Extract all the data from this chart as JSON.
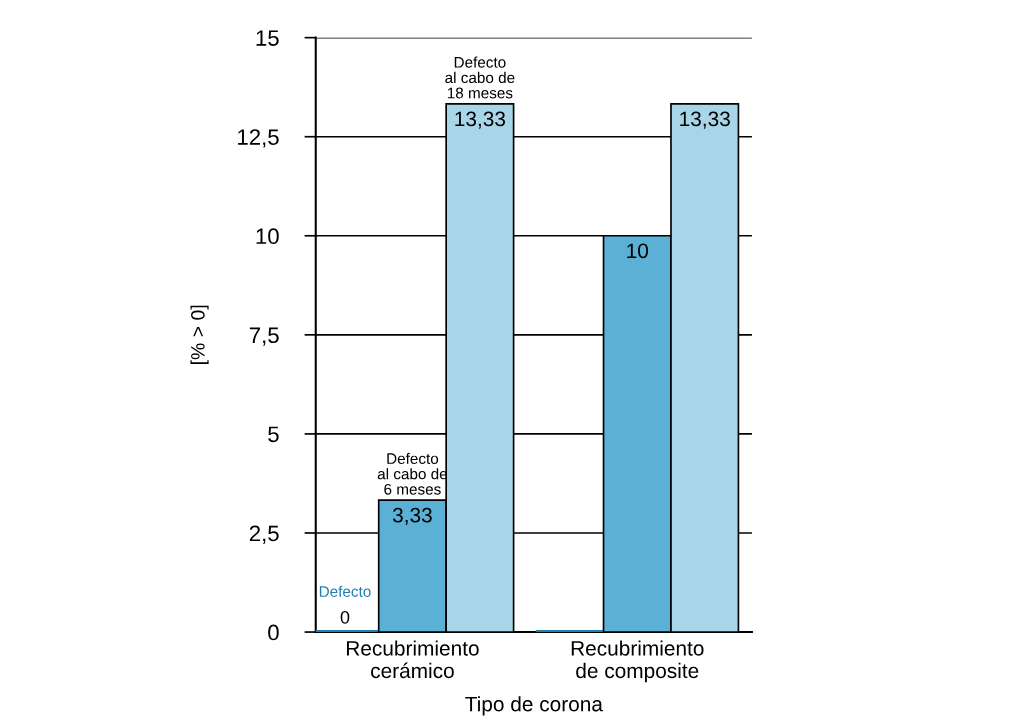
{
  "chart_data": {
    "type": "bar",
    "xlabel": "Tipo de corona",
    "ylabel": "[% > 0]",
    "categories": [
      "Recubrimiento\ncerámico",
      "Recubrimiento\nde composite"
    ],
    "series": [
      {
        "name": "Defecto",
        "color": "#1f7fb3",
        "values": [
          0,
          0
        ],
        "value_labels": [
          "0",
          null
        ]
      },
      {
        "name": "Defecto\nal cabo de\n6 meses",
        "color": "#5ab1d5",
        "values": [
          3.33,
          10
        ],
        "value_labels": [
          "3,33",
          "10"
        ]
      },
      {
        "name": "Defecto\nal cabo de\n18 meses",
        "color": "#a8d6e8",
        "values": [
          13.33,
          13.33
        ],
        "value_labels": [
          "13,33",
          "13,33"
        ]
      }
    ],
    "ylim": [
      0,
      15
    ],
    "yticks": [
      0,
      {
        "value": 2.5,
        "label": "2,5"
      },
      5,
      {
        "value": 7.5,
        "label": "7,5"
      },
      10,
      {
        "value": 12.5,
        "label": "12,5"
      },
      15
    ],
    "grid": "y",
    "legend": false
  }
}
